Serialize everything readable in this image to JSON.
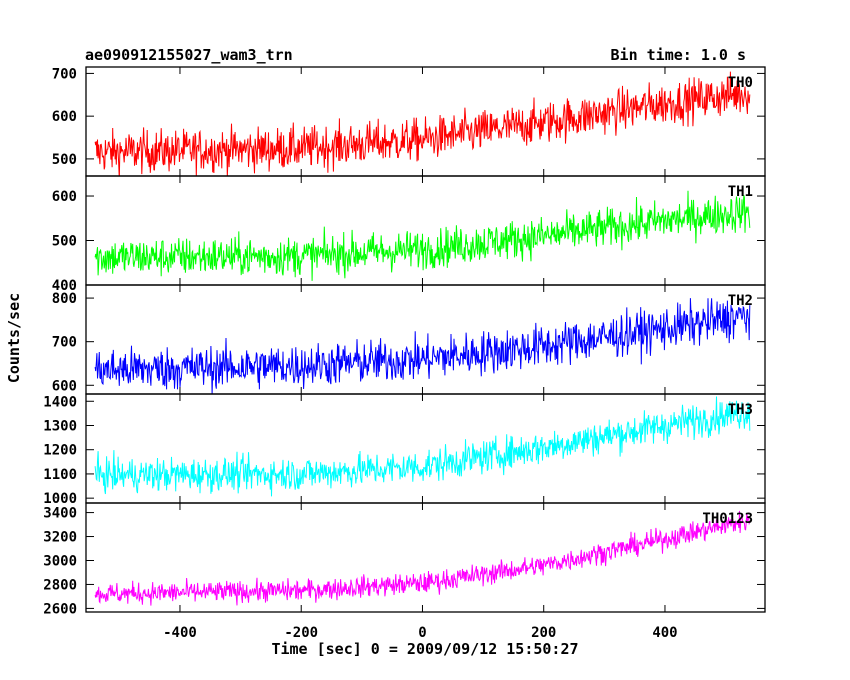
{
  "header": {
    "left_title": "ae090912155027_wam3_trn",
    "right_title": "Bin time: 1.0 s"
  },
  "chart_data": {
    "type": "line",
    "title": "ae090912155027_wam3_trn",
    "subtitle": "Bin time: 1.0 s",
    "xlabel": "Time [sec] 0 = 2009/09/12 15:50:27",
    "ylabel": "Counts/sec",
    "xlim": [
      -555,
      565
    ],
    "xticks": [
      -400,
      -200,
      0,
      200,
      400
    ],
    "x_range": [
      -540,
      540
    ],
    "x_step": 1,
    "panels": [
      {
        "name": "TH0",
        "color": "#ff0000",
        "ylim": [
          460,
          715
        ],
        "yticks": [
          500,
          600,
          700
        ],
        "trend": [
          {
            "x": -540,
            "y": 515
          },
          {
            "x": -200,
            "y": 525
          },
          {
            "x": 0,
            "y": 545
          },
          {
            "x": 200,
            "y": 585
          },
          {
            "x": 400,
            "y": 630
          },
          {
            "x": 540,
            "y": 655
          }
        ],
        "noise": 25
      },
      {
        "name": "TH1",
        "color": "#00ff00",
        "ylim": [
          400,
          645
        ],
        "yticks": [
          400,
          500,
          600
        ],
        "trend": [
          {
            "x": -540,
            "y": 462
          },
          {
            "x": -200,
            "y": 465
          },
          {
            "x": 0,
            "y": 480
          },
          {
            "x": 200,
            "y": 510
          },
          {
            "x": 400,
            "y": 545
          },
          {
            "x": 540,
            "y": 565
          }
        ],
        "noise": 22
      },
      {
        "name": "TH2",
        "color": "#0000ff",
        "ylim": [
          580,
          830
        ],
        "yticks": [
          600,
          700,
          800
        ],
        "trend": [
          {
            "x": -540,
            "y": 635
          },
          {
            "x": -200,
            "y": 645
          },
          {
            "x": 0,
            "y": 660
          },
          {
            "x": 200,
            "y": 690
          },
          {
            "x": 400,
            "y": 730
          },
          {
            "x": 540,
            "y": 760
          }
        ],
        "noise": 25
      },
      {
        "name": "TH3",
        "color": "#00ffff",
        "ylim": [
          980,
          1430
        ],
        "yticks": [
          1000,
          1100,
          1200,
          1300,
          1400
        ],
        "trend": [
          {
            "x": -540,
            "y": 1095
          },
          {
            "x": -200,
            "y": 1100
          },
          {
            "x": 0,
            "y": 1130
          },
          {
            "x": 200,
            "y": 1210
          },
          {
            "x": 400,
            "y": 1300
          },
          {
            "x": 540,
            "y": 1360
          }
        ],
        "noise": 35
      },
      {
        "name": "TH0123",
        "color": "#ff00ff",
        "ylim": [
          2570,
          3480
        ],
        "yticks": [
          2600,
          2800,
          3000,
          3200,
          3400
        ],
        "trend": [
          {
            "x": -540,
            "y": 2720
          },
          {
            "x": -200,
            "y": 2750
          },
          {
            "x": 0,
            "y": 2810
          },
          {
            "x": 200,
            "y": 2960
          },
          {
            "x": 400,
            "y": 3180
          },
          {
            "x": 540,
            "y": 3340
          }
        ],
        "noise": 45
      }
    ]
  }
}
